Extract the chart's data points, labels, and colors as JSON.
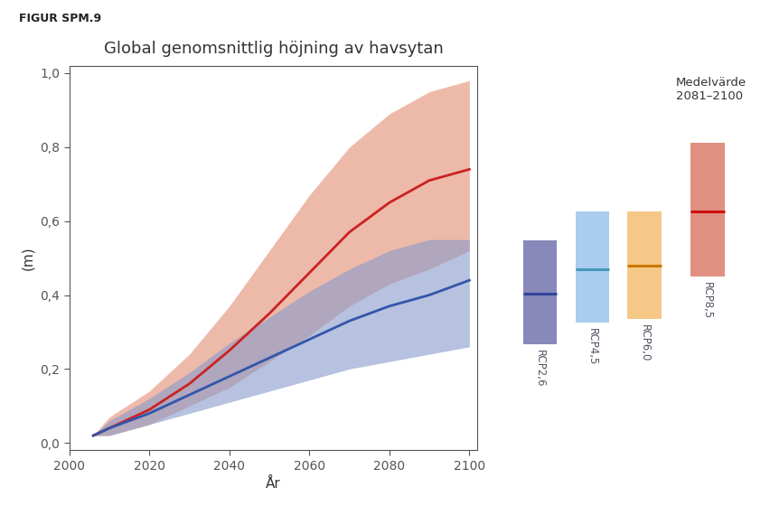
{
  "title": "Global genomsnittlig höjning av havsytan",
  "figur_label": "FIGUR SPM.9",
  "xlabel": "År",
  "ylabel": "(m)",
  "xlim": [
    2000,
    2102
  ],
  "ylim": [
    -0.02,
    1.02
  ],
  "xticks": [
    2000,
    2020,
    2040,
    2060,
    2080,
    2100
  ],
  "ytick_vals": [
    0.0,
    0.2,
    0.4,
    0.6,
    0.8,
    1.0
  ],
  "ytick_labels": [
    "0,0",
    "0,2",
    "0,4",
    "0,6",
    "0,8",
    "1,0"
  ],
  "rcp26": {
    "years": [
      2006,
      2010,
      2020,
      2030,
      2040,
      2050,
      2060,
      2070,
      2080,
      2090,
      2100
    ],
    "mean": [
      0.02,
      0.04,
      0.08,
      0.13,
      0.18,
      0.23,
      0.28,
      0.33,
      0.37,
      0.4,
      0.44
    ],
    "low": [
      0.02,
      0.02,
      0.05,
      0.08,
      0.11,
      0.14,
      0.17,
      0.2,
      0.22,
      0.24,
      0.26
    ],
    "high": [
      0.02,
      0.06,
      0.12,
      0.19,
      0.27,
      0.34,
      0.41,
      0.47,
      0.52,
      0.55,
      0.55
    ],
    "color_mean": "#3355aa",
    "color_band": "#8899cc",
    "alpha_band": 0.6
  },
  "rcp85": {
    "years": [
      2006,
      2010,
      2020,
      2030,
      2040,
      2050,
      2060,
      2070,
      2080,
      2090,
      2100
    ],
    "mean": [
      0.02,
      0.04,
      0.09,
      0.16,
      0.25,
      0.35,
      0.46,
      0.57,
      0.65,
      0.71,
      0.74
    ],
    "low": [
      0.02,
      0.02,
      0.05,
      0.1,
      0.15,
      0.22,
      0.29,
      0.37,
      0.43,
      0.47,
      0.52
    ],
    "high": [
      0.02,
      0.07,
      0.14,
      0.24,
      0.37,
      0.52,
      0.67,
      0.8,
      0.89,
      0.95,
      0.98
    ],
    "color_mean": "#cc2222",
    "color_band": "#dd7755",
    "alpha_band": 0.5
  },
  "bar_data": {
    "labels": [
      "RCP2,6",
      "RCP4,5",
      "RCP6,0",
      "RCP8,5"
    ],
    "low": [
      0.26,
      0.32,
      0.33,
      0.45
    ],
    "high": [
      0.55,
      0.63,
      0.63,
      0.82
    ],
    "median": [
      0.4,
      0.47,
      0.48,
      0.63
    ],
    "fill_colors": [
      "#8888bb",
      "#aaccee",
      "#f5c888",
      "#e09080"
    ],
    "median_colors": [
      "#334499",
      "#4499bb",
      "#cc7700",
      "#cc1111"
    ]
  },
  "inset_label": "Medelvärde\n2081–2100",
  "background_color": "#ffffff",
  "title_color": "#333333",
  "axis_color": "#333333",
  "figur_color": "#222222",
  "tick_color": "#555555",
  "spine_color": "#555555"
}
